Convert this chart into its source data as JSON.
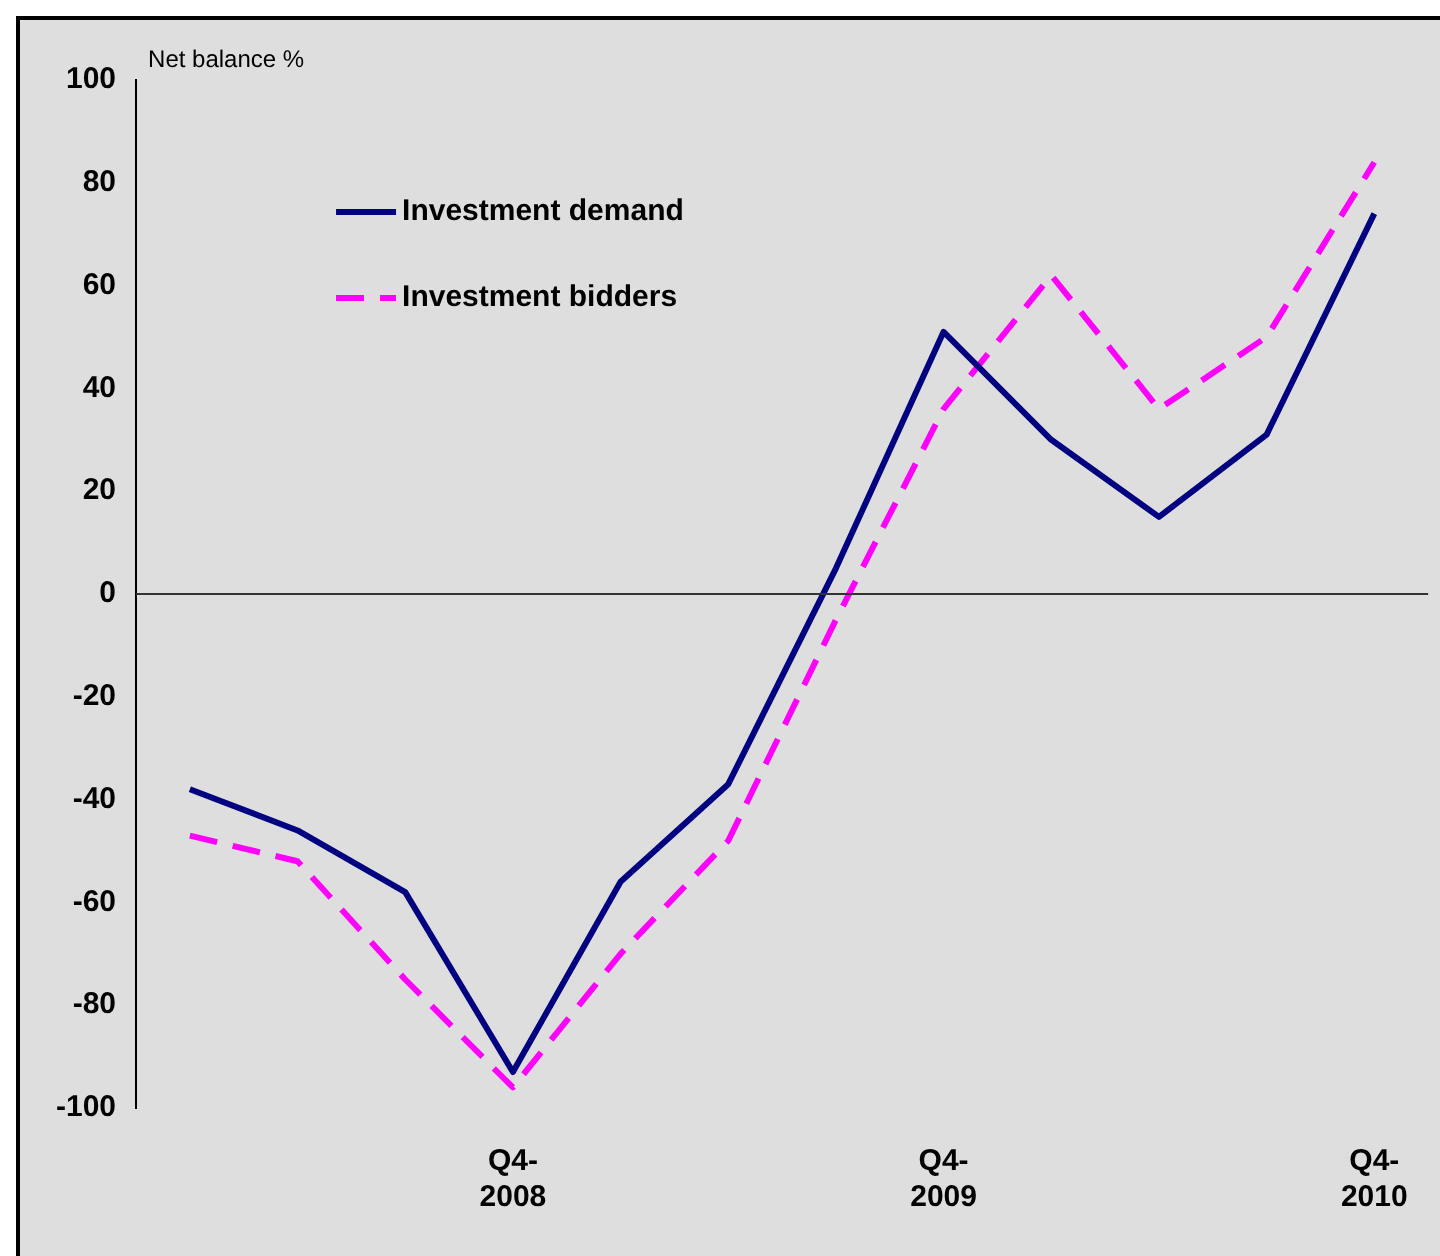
{
  "chart_data": {
    "type": "line",
    "ylabel": "Net balance %",
    "categories": [
      null,
      null,
      null,
      "Q4-\n2008",
      null,
      null,
      null,
      "Q4-\n2009",
      null,
      null,
      null,
      "Q4-\n2010"
    ],
    "series": [
      {
        "name": "Investment demand",
        "color": "#000080",
        "line_style": "solid",
        "values": [
          -38,
          -46,
          -58,
          -93,
          -56,
          -37,
          5,
          51,
          30,
          15,
          31,
          74
        ]
      },
      {
        "name": "Investment bidders",
        "color": "#ff00ff",
        "line_style": "dashed",
        "values": [
          -47,
          -52,
          -75,
          -96,
          -70,
          -48,
          -5,
          36,
          62,
          36,
          50,
          84
        ]
      }
    ],
    "ylim": [
      -100,
      100
    ],
    "yticks": [
      -100,
      -80,
      -60,
      -40,
      -20,
      0,
      20,
      40,
      60,
      80,
      100
    ],
    "ref_lines": [
      {
        "axis": "y",
        "value": 0
      }
    ],
    "grid": false,
    "legend": "top left",
    "marker": "none"
  }
}
